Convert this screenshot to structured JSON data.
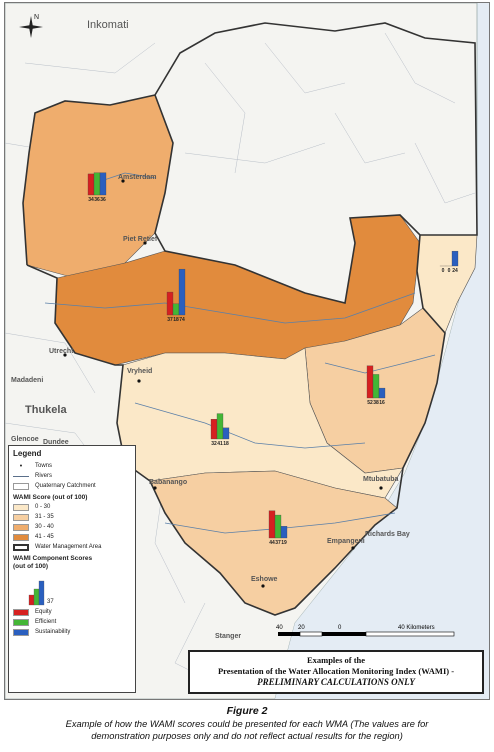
{
  "colors": {
    "water": "#e4ecf4",
    "land": "#f7f7f5",
    "class_0_30": "#fbe8c8",
    "class_31_35": "#f6cfa2",
    "class_30_40": "#efad6d",
    "class_41_45": "#e18b3d",
    "equity": "#d62020",
    "efficient": "#44b636",
    "sustainability": "#2a5fbf",
    "wma_border": "#333333",
    "river": "#5a7fa8"
  },
  "compass": {
    "north": "N"
  },
  "place_labels": {
    "inkomati": "Inkomati",
    "amsterdam": "Amsterdam",
    "piet_retief": "Piet Retief",
    "utrecht": "Utrecht",
    "madadeni": "Madadeni",
    "thukela": "Thukela",
    "vryheid": "Vryheid",
    "glencoe": "Glencoe",
    "dundee": "Dundee",
    "babanango": "Babanango",
    "mtubatuba": "Mtubatuba",
    "empangeni": "Empangeni",
    "richards_bay": "Richards Bay",
    "eshowe": "Eshowe",
    "stanger": "Stanger"
  },
  "bar_groups": [
    {
      "id": "north",
      "values": [
        34,
        36,
        36
      ]
    },
    {
      "id": "central",
      "values": [
        37,
        18,
        74
      ]
    },
    {
      "id": "east",
      "values": [
        0,
        0,
        24
      ]
    },
    {
      "id": "south-east",
      "values": [
        52,
        38,
        16
      ]
    },
    {
      "id": "middle",
      "values": [
        32,
        41,
        18
      ]
    },
    {
      "id": "south",
      "values": [
        44,
        37,
        19
      ]
    }
  ],
  "legend": {
    "title": "Legend",
    "towns": "Towns",
    "rivers": "Rivers",
    "quaternary": "Quaternary Catchment",
    "score_title": "WAMI Score (out of 100)",
    "classes": [
      "0 - 30",
      "31 - 35",
      "30 - 40",
      "41 - 45"
    ],
    "wma": "Water Management Area",
    "component_title_1": "WAMI Component Scores",
    "component_title_2": "(out of 100)",
    "component_example_value": "37",
    "components": [
      "Equity",
      "Efficient",
      "Sustainability"
    ]
  },
  "scale": {
    "ticks": [
      "40",
      "20",
      "0",
      "40 Kilometers"
    ]
  },
  "title_box": {
    "line1": "Examples of the",
    "line2": "Presentation of the Water Allocation Monitoring Index (WAMI) -",
    "line3": "PRELIMINARY CALCULATIONS ONLY"
  },
  "figure": {
    "label": "Figure 2",
    "caption_line1": "Example of how the WAMI scores could be presented for each WMA (The values are for",
    "caption_line2": "demonstration purposes only and do not reflect actual results for the region)"
  }
}
